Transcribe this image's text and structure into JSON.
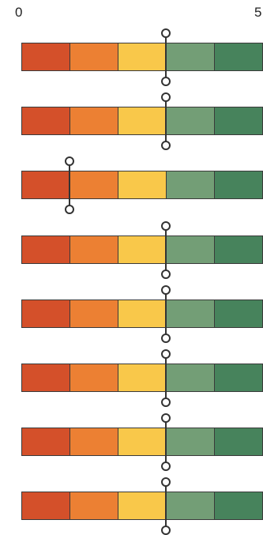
{
  "scale": {
    "min_label": "0",
    "max_label": "5",
    "min": 0,
    "max": 5
  },
  "segment_colors": [
    "#d4502a",
    "#ec8033",
    "#f9c84a",
    "#739e76",
    "#47835c"
  ],
  "gauges": [
    {
      "marker_value": 3.0
    },
    {
      "marker_value": 3.0
    },
    {
      "marker_value": 1.0
    },
    {
      "marker_value": 3.0
    },
    {
      "marker_value": 3.0
    },
    {
      "marker_value": 3.0
    },
    {
      "marker_value": 3.0
    },
    {
      "marker_value": 3.0
    }
  ]
}
